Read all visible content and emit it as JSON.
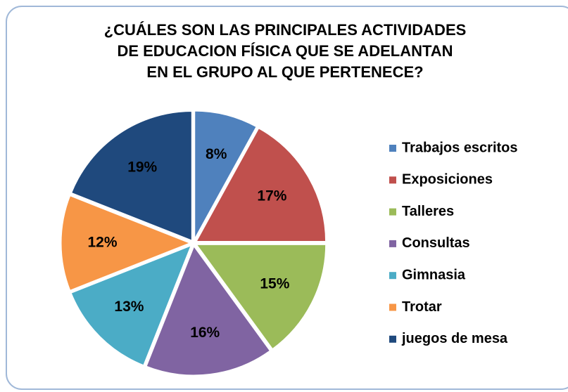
{
  "chart_data": {
    "type": "pie",
    "title": "¿CUÁLES SON LAS PRINCIPALES ACTIVIDADES\nDE EDUCACION FÍSICA QUE SE ADELANTAN\nEN EL GRUPO AL QUE PERTENECE?",
    "categories": [
      "Trabajos escritos",
      "Exposiciones",
      "Talleres",
      "Consultas",
      "Gimnasia",
      "Trotar",
      "juegos de mesa"
    ],
    "values": [
      8,
      17,
      15,
      16,
      13,
      12,
      19
    ],
    "value_labels": [
      "8%",
      "17%",
      "15%",
      "16%",
      "13%",
      "12%",
      "19%"
    ],
    "colors": [
      "#4f81bd",
      "#c0504d",
      "#9bbb59",
      "#8064a2",
      "#4bacc6",
      "#f79646",
      "#1f497d"
    ],
    "legend": "right"
  }
}
